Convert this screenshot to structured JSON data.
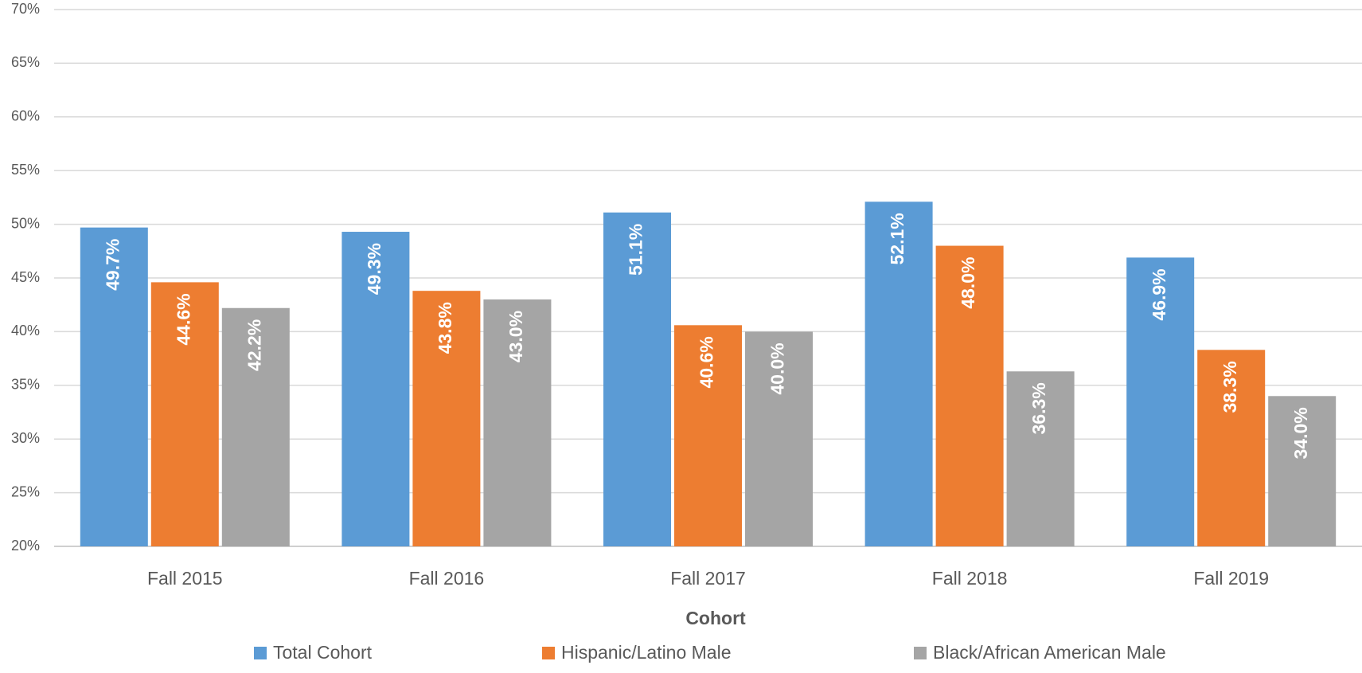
{
  "chart_data": {
    "type": "bar",
    "x_label": "Cohort",
    "categories": [
      "Fall 2015",
      "Fall 2016",
      "Fall 2017",
      "Fall 2018",
      "Fall 2019"
    ],
    "series": [
      {
        "name": "Total Cohort",
        "color": "#5b9bd5",
        "values": [
          49.7,
          49.3,
          51.1,
          52.1,
          46.9
        ],
        "value_labels": [
          "49.7%",
          "49.3%",
          "51.1%",
          "52.1%",
          "46.9%"
        ]
      },
      {
        "name": "Hispanic/Latino Male",
        "color": "#ed7d31",
        "values": [
          44.6,
          43.8,
          40.6,
          48.0,
          38.3
        ],
        "value_labels": [
          "44.6%",
          "43.8%",
          "40.6%",
          "48.0%",
          "38.3%"
        ]
      },
      {
        "name": "Black/African American Male",
        "color": "#a5a5a5",
        "values": [
          42.2,
          43.0,
          40.0,
          36.3,
          34.0
        ],
        "value_labels": [
          "42.2%",
          "43.0%",
          "40.0%",
          "36.3%",
          "34.0%"
        ]
      }
    ],
    "ylim": [
      20,
      70
    ],
    "yticks": [
      {
        "value": 20,
        "label": "20%"
      },
      {
        "value": 25,
        "label": "25%"
      },
      {
        "value": 30,
        "label": "30%"
      },
      {
        "value": 35,
        "label": "35%"
      },
      {
        "value": 40,
        "label": "40%"
      },
      {
        "value": 45,
        "label": "45%"
      },
      {
        "value": 50,
        "label": "50%"
      },
      {
        "value": 55,
        "label": "55%"
      },
      {
        "value": 60,
        "label": "60%"
      },
      {
        "value": 65,
        "label": "65%"
      },
      {
        "value": 70,
        "label": "70%"
      }
    ],
    "grid": true,
    "legend": "bottom"
  }
}
